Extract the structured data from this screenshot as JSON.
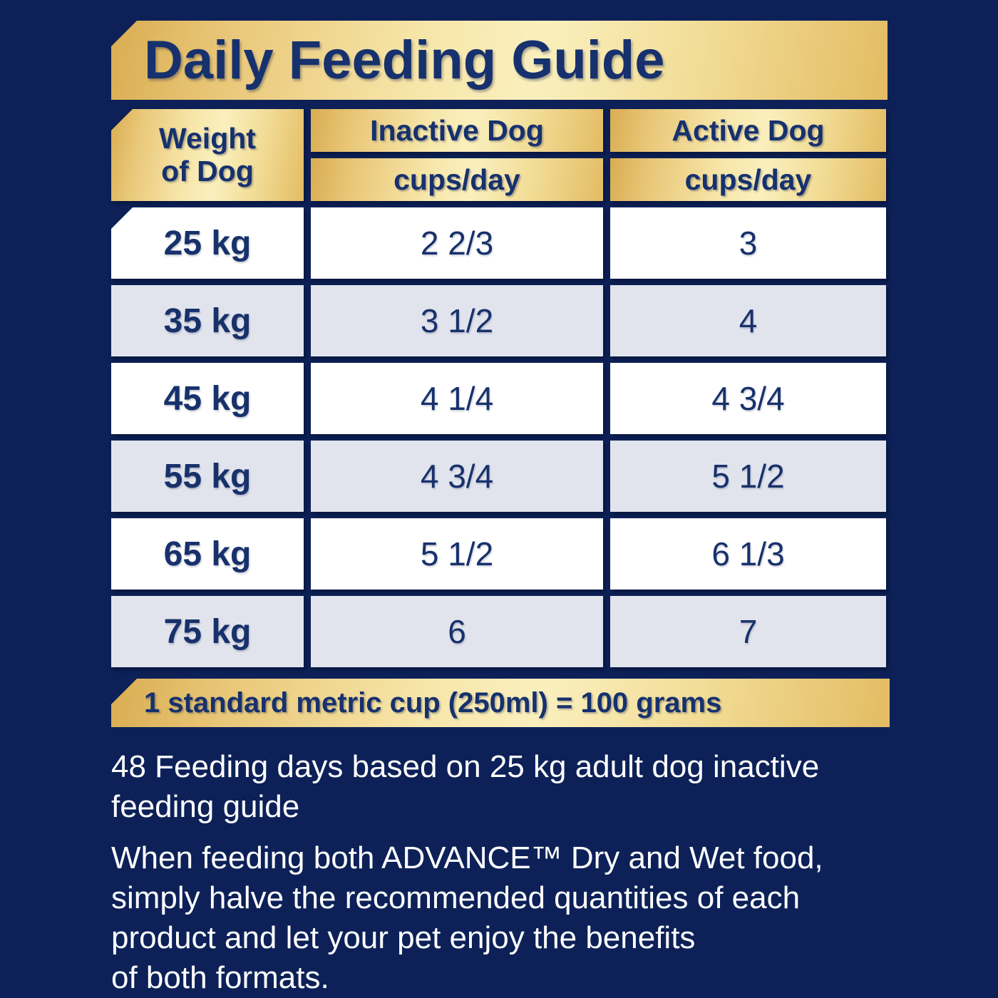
{
  "banner": {
    "title": "Daily Feeding Guide"
  },
  "table": {
    "headers": {
      "weight_line1": "Weight",
      "weight_line2": "of Dog",
      "inactive": "Inactive Dog",
      "inactive_unit": "cups/day",
      "active": "Active Dog",
      "active_unit": "cups/day"
    },
    "rows": [
      {
        "weight": "25 kg",
        "inactive": "2 2/3",
        "active": "3"
      },
      {
        "weight": "35 kg",
        "inactive": "3 1/2",
        "active": "4"
      },
      {
        "weight": "45 kg",
        "inactive": "4 1/4",
        "active": "4 3/4"
      },
      {
        "weight": "55 kg",
        "inactive": "4 3/4",
        "active": "5 1/2"
      },
      {
        "weight": "65 kg",
        "inactive": "5 1/2",
        "active": "6 1/3"
      },
      {
        "weight": "75 kg",
        "inactive": "6",
        "active": "7"
      }
    ]
  },
  "cup_note": "1 standard metric cup (250ml) = 100 grams",
  "footnotes": {
    "feeding_days": {
      "line1": "48 Feeding days based on 25 kg adult dog inactive",
      "line2": "feeding guide"
    },
    "mixed_feeding": {
      "line1": "When feeding both ADVANCE™ Dry and Wet food,",
      "line2": "simply halve the recommended quantities of each",
      "line3": "product and let your pet enjoy the benefits",
      "line4": "of both formats."
    }
  },
  "colors": {
    "background_navy": "#0d2158",
    "text_navy": "#17316b",
    "gold_dark": "#d9ad52",
    "gold_light": "#faefbd",
    "row_white": "#ffffff",
    "row_alt_gray": "#e2e4ed",
    "footnote_white": "#ffffff"
  }
}
